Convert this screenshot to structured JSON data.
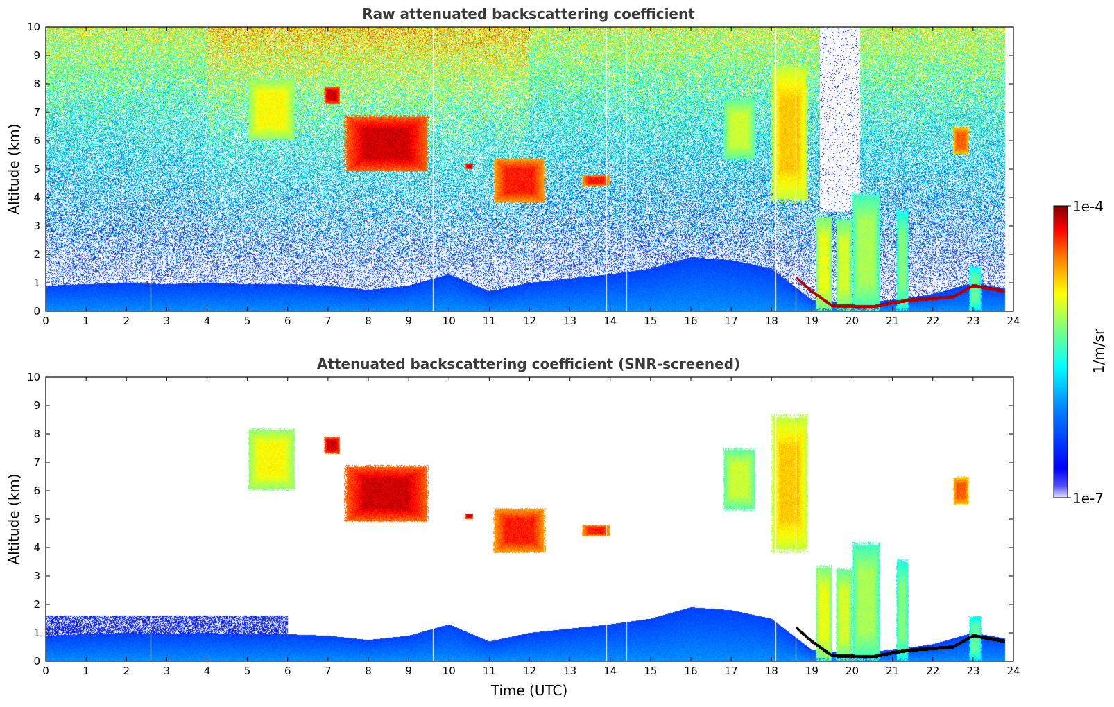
{
  "chart_data": [
    {
      "type": "heatmap",
      "title": "Raw attenuated backscattering coefficient",
      "xlabel": "",
      "ylabel": "Altitude (km)",
      "xlim": [
        0,
        24
      ],
      "ylim": [
        0,
        10
      ],
      "xticks": [
        0,
        1,
        2,
        3,
        4,
        5,
        6,
        7,
        8,
        9,
        10,
        11,
        12,
        13,
        14,
        15,
        16,
        17,
        18,
        19,
        20,
        21,
        22,
        23,
        24
      ],
      "yticks": [
        0,
        1,
        2,
        3,
        4,
        5,
        6,
        7,
        8,
        9,
        10
      ],
      "grid": false,
      "screened": false
    },
    {
      "type": "heatmap",
      "title": "Attenuated backscattering coefficient (SNR-screened)",
      "xlabel": "Time (UTC)",
      "ylabel": "Altitude (km)",
      "xlim": [
        0,
        24
      ],
      "ylim": [
        0,
        10
      ],
      "xticks": [
        0,
        1,
        2,
        3,
        4,
        5,
        6,
        7,
        8,
        9,
        10,
        11,
        12,
        13,
        14,
        15,
        16,
        17,
        18,
        19,
        20,
        21,
        22,
        23,
        24
      ],
      "yticks": [
        0,
        1,
        2,
        3,
        4,
        5,
        6,
        7,
        8,
        9,
        10
      ],
      "grid": false,
      "screened": true
    }
  ],
  "colorbar": {
    "label": "1/m/sr",
    "max_label": "1e-4",
    "min_label": "1e-7",
    "scale": "log",
    "range": [
      1e-07,
      0.0001
    ],
    "colormap": "jet",
    "colors": [
      "#e6e6ff",
      "#0000cc",
      "#0000ff",
      "#0080ff",
      "#00ffff",
      "#80ff80",
      "#ffff00",
      "#ff8000",
      "#ff0000",
      "#800000"
    ]
  },
  "features": {
    "boundary_layer": [
      [
        0,
        0.9
      ],
      [
        1,
        0.95
      ],
      [
        2,
        1.0
      ],
      [
        3,
        0.95
      ],
      [
        4,
        1.0
      ],
      [
        5,
        0.95
      ],
      [
        6,
        0.95
      ],
      [
        7,
        0.9
      ],
      [
        8,
        0.75
      ],
      [
        9,
        0.9
      ],
      [
        10,
        1.3
      ],
      [
        11,
        0.7
      ],
      [
        12,
        1.0
      ],
      [
        13,
        1.15
      ],
      [
        14,
        1.3
      ],
      [
        15,
        1.5
      ],
      [
        16,
        1.9
      ],
      [
        17,
        1.8
      ],
      [
        18,
        1.5
      ],
      [
        19,
        0.4
      ],
      [
        20,
        0.3
      ],
      [
        21,
        0.4
      ],
      [
        22,
        0.6
      ],
      [
        23,
        1.0
      ],
      [
        23.8,
        0.8
      ]
    ],
    "residual_layer_top_screened": 1.6,
    "cirrus_patches": [
      {
        "t0": 5.0,
        "t1": 6.2,
        "z0": 6.0,
        "z1": 8.2,
        "level": 0.7
      },
      {
        "t0": 6.9,
        "t1": 7.3,
        "z0": 7.3,
        "z1": 7.9,
        "level": 0.95
      },
      {
        "t0": 7.4,
        "t1": 9.5,
        "z0": 4.9,
        "z1": 6.9,
        "level": 0.95
      },
      {
        "t0": 10.4,
        "t1": 10.6,
        "z0": 5.0,
        "z1": 5.2,
        "level": 0.95
      },
      {
        "t0": 11.1,
        "t1": 12.4,
        "z0": 3.8,
        "z1": 5.4,
        "level": 0.9
      },
      {
        "t0": 13.3,
        "t1": 14.0,
        "z0": 4.4,
        "z1": 4.8,
        "level": 0.9
      },
      {
        "t0": 16.8,
        "t1": 17.6,
        "z0": 5.3,
        "z1": 7.5,
        "level": 0.65
      },
      {
        "t0": 18.0,
        "t1": 18.9,
        "z0": 3.8,
        "z1": 8.7,
        "level": 0.75
      },
      {
        "t0": 22.5,
        "t1": 22.9,
        "z0": 5.5,
        "z1": 6.5,
        "level": 0.85
      }
    ],
    "low_clouds": [
      {
        "t0": 19.1,
        "t1": 19.5,
        "z0": 0,
        "z1": 3.4,
        "level": 0.68
      },
      {
        "t0": 19.6,
        "t1": 20.0,
        "z0": 0,
        "z1": 3.3,
        "level": 0.66
      },
      {
        "t0": 20.0,
        "t1": 20.7,
        "z0": 0,
        "z1": 4.2,
        "level": 0.62
      },
      {
        "t0": 21.1,
        "t1": 21.4,
        "z0": 0,
        "z1": 3.6,
        "level": 0.58
      },
      {
        "t0": 22.9,
        "t1": 23.2,
        "z0": 0,
        "z1": 1.6,
        "level": 0.55
      }
    ],
    "cloud_base_line": [
      [
        18.6,
        1.2
      ],
      [
        19.0,
        0.7
      ],
      [
        19.5,
        0.2
      ],
      [
        20.5,
        0.15
      ],
      [
        21.0,
        0.3
      ],
      [
        21.5,
        0.4
      ],
      [
        22.5,
        0.5
      ],
      [
        23.0,
        0.9
      ],
      [
        23.8,
        0.7
      ]
    ],
    "data_gaps": [
      2.6,
      9.6,
      13.9,
      14.4,
      18.1,
      18.6
    ]
  }
}
